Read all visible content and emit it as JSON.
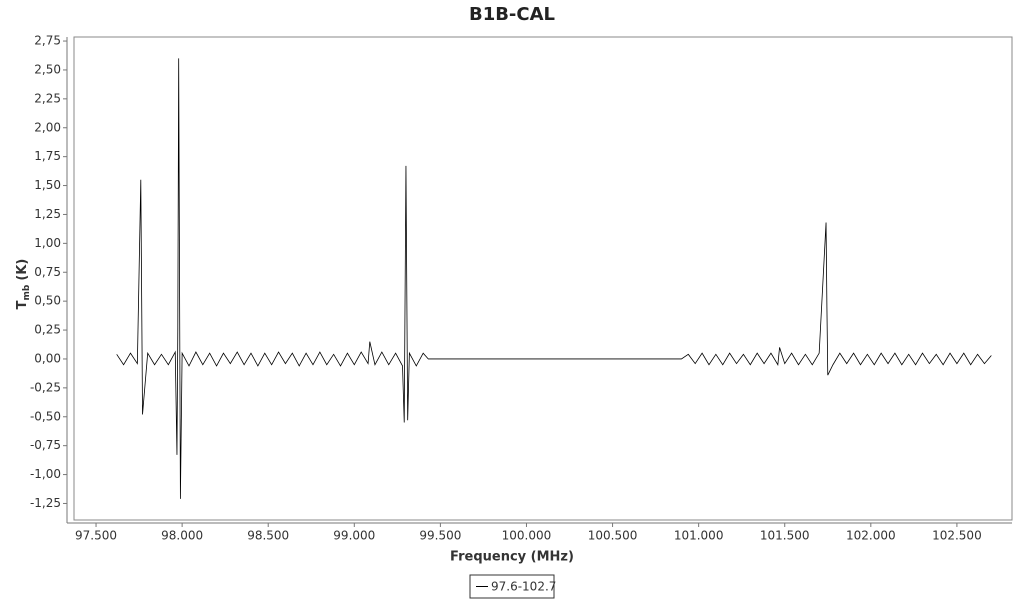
{
  "chart_data": {
    "type": "line",
    "title": "B1B-CAL",
    "x_label": "Frequency (MHz)",
    "y_label": "T",
    "y_label_sub": "mb",
    "y_label_unit": "(K)",
    "legend": "bottom",
    "grid": false,
    "xlim": [
      97.372,
      102.82
    ],
    "ylim": [
      -1.393,
      2.785
    ],
    "xticks": [
      {
        "value": 97.5,
        "label": "97.500"
      },
      {
        "value": 98,
        "label": "98.000"
      },
      {
        "value": 98.5,
        "label": "98.500"
      },
      {
        "value": 99,
        "label": "99.000"
      },
      {
        "value": 99.5,
        "label": "99.500"
      },
      {
        "value": 100,
        "label": "100.000"
      },
      {
        "value": 100.5,
        "label": "100.500"
      },
      {
        "value": 101,
        "label": "101.000"
      },
      {
        "value": 101.5,
        "label": "101.500"
      },
      {
        "value": 102,
        "label": "102.000"
      },
      {
        "value": 102.5,
        "label": "102.500"
      }
    ],
    "yticks": [
      {
        "value": -1.25,
        "label": "-1,25"
      },
      {
        "value": -1,
        "label": "-1,00"
      },
      {
        "value": -0.75,
        "label": "-0,75"
      },
      {
        "value": -0.5,
        "label": "-0,50"
      },
      {
        "value": -0.25,
        "label": "-0,25"
      },
      {
        "value": 0,
        "label": "0,00"
      },
      {
        "value": 0.25,
        "label": "0,25"
      },
      {
        "value": 0.5,
        "label": "0,50"
      },
      {
        "value": 0.75,
        "label": "0,75"
      },
      {
        "value": 1,
        "label": "1,00"
      },
      {
        "value": 1.25,
        "label": "1,25"
      },
      {
        "value": 1.5,
        "label": "1,50"
      },
      {
        "value": 1.75,
        "label": "1,75"
      },
      {
        "value": 2,
        "label": "2,00"
      },
      {
        "value": 2.25,
        "label": "2,25"
      },
      {
        "value": 2.5,
        "label": "2,50"
      },
      {
        "value": 2.75,
        "label": "2,75"
      }
    ],
    "x": [
      97.62,
      97.66,
      97.7,
      97.74,
      97.76,
      97.77,
      97.8,
      97.84,
      97.88,
      97.92,
      97.96,
      97.97,
      97.975,
      97.98,
      97.99,
      98.0,
      98.04,
      98.08,
      98.12,
      98.16,
      98.2,
      98.24,
      98.28,
      98.32,
      98.36,
      98.4,
      98.44,
      98.48,
      98.52,
      98.56,
      98.6,
      98.64,
      98.68,
      98.72,
      98.76,
      98.8,
      98.84,
      98.88,
      98.92,
      98.96,
      99.0,
      99.04,
      99.08,
      99.09,
      99.12,
      99.16,
      99.2,
      99.24,
      99.28,
      99.29,
      99.3,
      99.31,
      99.32,
      99.36,
      99.4,
      99.43,
      100.9,
      100.94,
      100.98,
      101.02,
      101.06,
      101.1,
      101.14,
      101.18,
      101.22,
      101.26,
      101.3,
      101.34,
      101.38,
      101.42,
      101.46,
      101.47,
      101.5,
      101.54,
      101.58,
      101.62,
      101.66,
      101.7,
      101.74,
      101.745,
      101.75,
      101.78,
      101.82,
      101.86,
      101.9,
      101.94,
      101.98,
      102.02,
      102.06,
      102.1,
      102.14,
      102.18,
      102.22,
      102.26,
      102.3,
      102.34,
      102.38,
      102.42,
      102.46,
      102.5,
      102.54,
      102.58,
      102.62,
      102.66,
      102.7
    ],
    "series": [
      {
        "name": "97.6-102.7",
        "color": "#000000",
        "values": [
          0.04,
          -0.05,
          0.05,
          -0.04,
          1.55,
          -0.48,
          0.05,
          -0.05,
          0.04,
          -0.05,
          0.06,
          -0.83,
          0.27,
          2.6,
          -1.21,
          0.05,
          -0.06,
          0.06,
          -0.05,
          0.05,
          -0.06,
          0.05,
          -0.04,
          0.06,
          -0.05,
          0.05,
          -0.06,
          0.05,
          -0.05,
          0.06,
          -0.04,
          0.05,
          -0.06,
          0.05,
          -0.05,
          0.06,
          -0.05,
          0.04,
          -0.06,
          0.05,
          -0.05,
          0.06,
          -0.04,
          0.15,
          -0.05,
          0.06,
          -0.05,
          0.05,
          -0.06,
          -0.55,
          1.67,
          -0.53,
          0.05,
          -0.06,
          0.05,
          0,
          0,
          0.04,
          -0.04,
          0.05,
          -0.05,
          0.04,
          -0.05,
          0.05,
          -0.04,
          0.04,
          -0.05,
          0.05,
          -0.04,
          0.05,
          -0.05,
          0.1,
          -0.04,
          0.05,
          -0.05,
          0.04,
          -0.05,
          0.05,
          1.18,
          0.45,
          -0.14,
          -0.05,
          0.05,
          -0.04,
          0.05,
          -0.05,
          0.04,
          -0.05,
          0.05,
          -0.04,
          0.05,
          -0.05,
          0.04,
          -0.05,
          0.05,
          -0.04,
          0.04,
          -0.05,
          0.05,
          -0.04,
          0.05,
          -0.05,
          0.04,
          -0.04,
          0.03
        ]
      }
    ]
  }
}
